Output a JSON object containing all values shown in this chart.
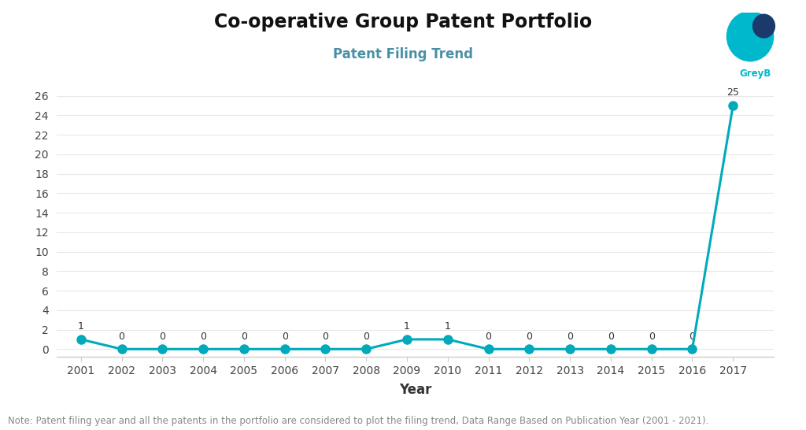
{
  "title": "Co-operative Group Patent Portfolio",
  "subtitle": "Patent Filing Trend",
  "xlabel": "Year",
  "years": [
    2001,
    2002,
    2003,
    2004,
    2005,
    2006,
    2007,
    2008,
    2009,
    2010,
    2011,
    2012,
    2013,
    2014,
    2015,
    2016,
    2017
  ],
  "values": [
    1,
    0,
    0,
    0,
    0,
    0,
    0,
    0,
    1,
    1,
    0,
    0,
    0,
    0,
    0,
    0,
    25
  ],
  "line_color": "#00AABB",
  "marker_color": "#00AABB",
  "bg_color": "#ffffff",
  "yticks": [
    0,
    2,
    4,
    6,
    8,
    10,
    12,
    14,
    16,
    18,
    20,
    22,
    24,
    26
  ],
  "ylim": [
    -0.8,
    27
  ],
  "xlim": [
    2000.4,
    2018.0
  ],
  "note": "Note: Patent filing year and all the patents in the portfolio are considered to plot the filing trend, Data Range Based on Publication Year (2001 - 2021).",
  "title_fontsize": 17,
  "subtitle_fontsize": 12,
  "xlabel_fontsize": 12,
  "label_fontsize": 9,
  "note_fontsize": 8.5,
  "tick_fontsize": 10,
  "marker_size": 8,
  "line_width": 2.2,
  "grid_color": "#e8e8e8",
  "spine_color": "#cccccc",
  "tick_label_color": "#444444",
  "note_color": "#888888",
  "subtitle_color": "#4a90a4",
  "title_color": "#111111"
}
